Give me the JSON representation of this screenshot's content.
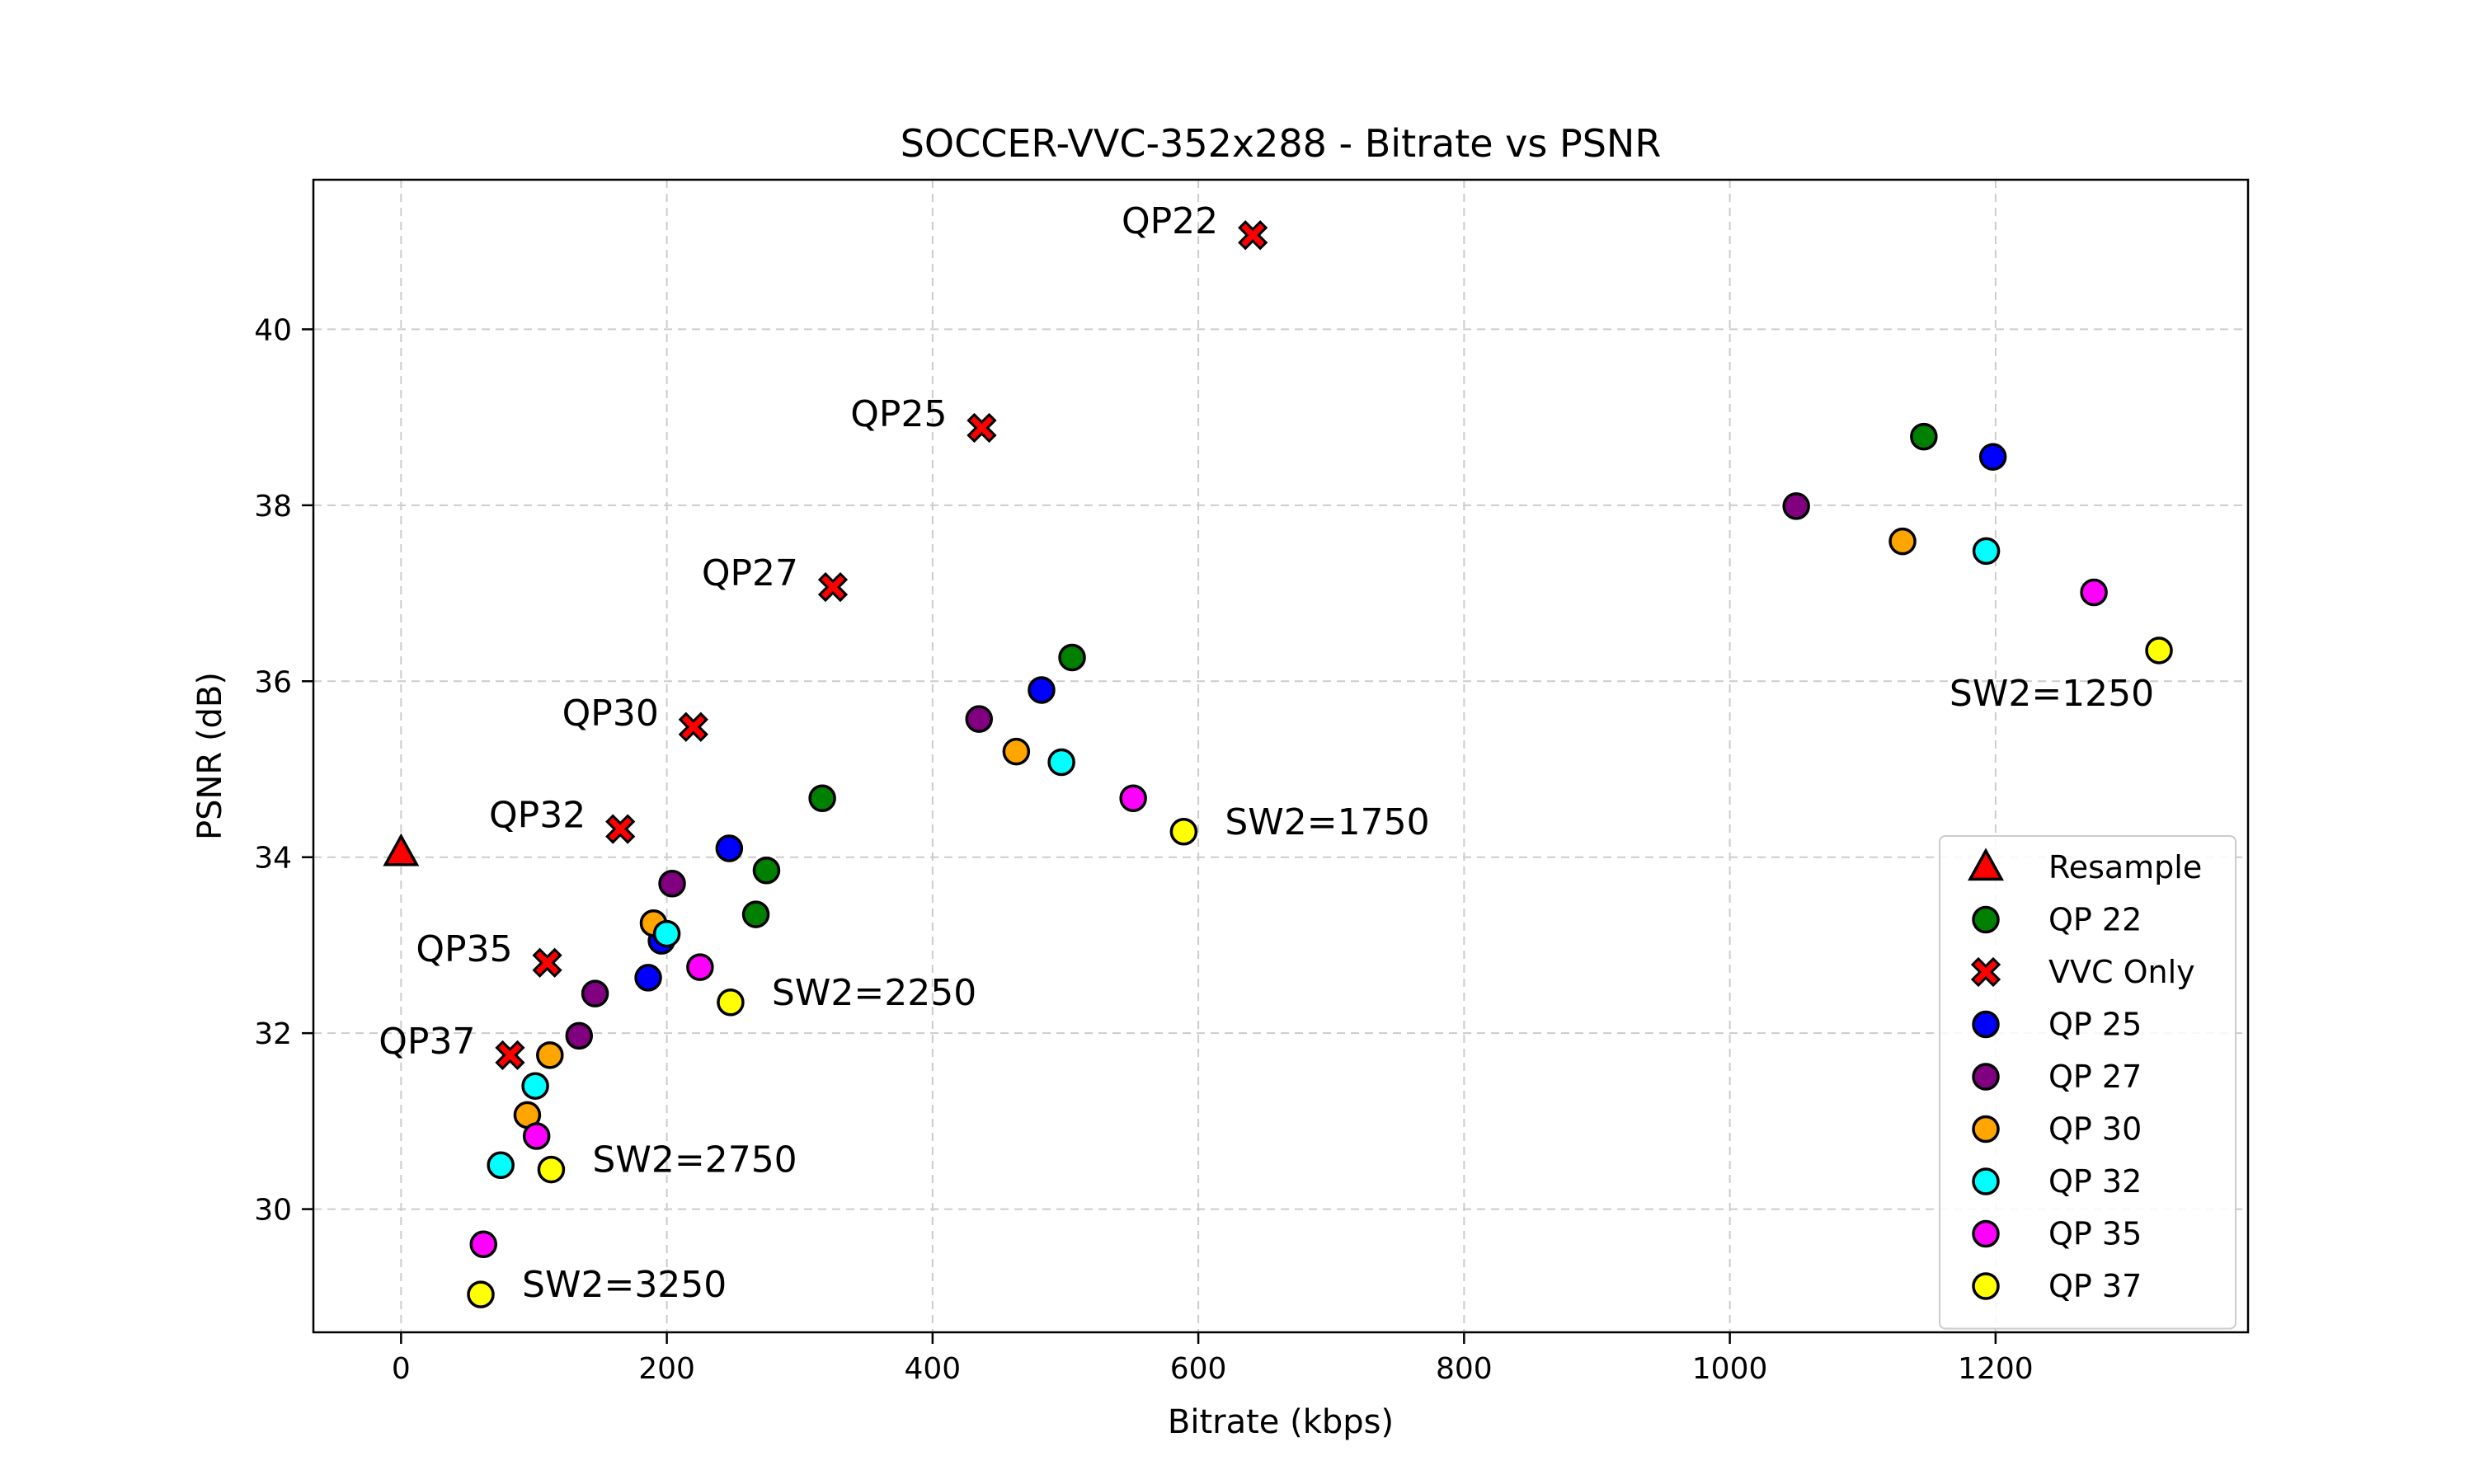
{
  "chart_data": {
    "type": "scatter",
    "title": "SOCCER-VVC-352x288 - Bitrate vs PSNR",
    "xlabel": "Bitrate (kbps)",
    "ylabel": "PSNR (dB)",
    "xlim": [
      -66,
      1390
    ],
    "ylim": [
      28.6,
      41.7
    ],
    "xticks": [
      0,
      200,
      400,
      600,
      800,
      1000,
      1200
    ],
    "yticks": [
      30,
      32,
      34,
      36,
      38,
      40
    ],
    "grid": true,
    "legend_position": "lower-right",
    "series": [
      {
        "name": "Resample",
        "marker": "triangle",
        "color": "#ff0000",
        "points": [
          {
            "x": 0,
            "y": 34.05
          }
        ]
      },
      {
        "name": "QP 22",
        "marker": "circle",
        "color": "#008000",
        "points": [
          {
            "x": 1146,
            "y": 38.78
          },
          {
            "x": 505,
            "y": 36.27
          },
          {
            "x": 317,
            "y": 34.67
          },
          {
            "x": 275,
            "y": 33.85
          },
          {
            "x": 267,
            "y": 33.35
          }
        ]
      },
      {
        "name": "VVC Only",
        "marker": "x",
        "color": "#ff0000",
        "points": [
          {
            "x": 641,
            "y": 41.07
          },
          {
            "x": 437,
            "y": 38.88
          },
          {
            "x": 325,
            "y": 37.07
          },
          {
            "x": 220,
            "y": 35.48
          },
          {
            "x": 165,
            "y": 34.32
          },
          {
            "x": 110,
            "y": 32.8
          },
          {
            "x": 82,
            "y": 31.75
          }
        ]
      },
      {
        "name": "QP 25",
        "marker": "circle",
        "color": "#0000ff",
        "points": [
          {
            "x": 1198,
            "y": 38.55
          },
          {
            "x": 482,
            "y": 35.9
          },
          {
            "x": 247,
            "y": 34.1
          },
          {
            "x": 196,
            "y": 33.05
          },
          {
            "x": 186,
            "y": 32.63
          }
        ]
      },
      {
        "name": "QP 27",
        "marker": "circle",
        "color": "#800080",
        "points": [
          {
            "x": 1050,
            "y": 37.99
          },
          {
            "x": 435,
            "y": 35.57
          },
          {
            "x": 204,
            "y": 33.7
          },
          {
            "x": 146,
            "y": 32.45
          },
          {
            "x": 134,
            "y": 31.97
          }
        ]
      },
      {
        "name": "QP 30",
        "marker": "circle",
        "color": "#ffa500",
        "points": [
          {
            "x": 1130,
            "y": 37.59
          },
          {
            "x": 463,
            "y": 35.2
          },
          {
            "x": 190,
            "y": 33.25
          },
          {
            "x": 112,
            "y": 31.75
          },
          {
            "x": 95,
            "y": 31.07
          }
        ]
      },
      {
        "name": "QP 32",
        "marker": "circle",
        "color": "#00ffff",
        "points": [
          {
            "x": 1193,
            "y": 37.48
          },
          {
            "x": 497,
            "y": 35.08
          },
          {
            "x": 200,
            "y": 33.13
          },
          {
            "x": 101,
            "y": 31.4
          },
          {
            "x": 75,
            "y": 30.5
          }
        ]
      },
      {
        "name": "QP 35",
        "marker": "circle",
        "color": "#ff00ff",
        "points": [
          {
            "x": 1274,
            "y": 37.01
          },
          {
            "x": 551,
            "y": 34.67
          },
          {
            "x": 225,
            "y": 32.75
          },
          {
            "x": 102,
            "y": 30.83
          },
          {
            "x": 62,
            "y": 29.6
          }
        ]
      },
      {
        "name": "QP 37",
        "marker": "circle",
        "color": "#ffff00",
        "points": [
          {
            "x": 1323,
            "y": 36.35
          },
          {
            "x": 589,
            "y": 34.29
          },
          {
            "x": 248,
            "y": 32.35
          },
          {
            "x": 113,
            "y": 30.45
          },
          {
            "x": 60,
            "y": 29.03
          }
        ]
      }
    ],
    "annotations": [
      {
        "text": "QP22",
        "x": 641,
        "y": 41.07,
        "side": "left"
      },
      {
        "text": "QP25",
        "x": 437,
        "y": 38.88,
        "side": "left"
      },
      {
        "text": "QP27",
        "x": 325,
        "y": 37.07,
        "side": "left"
      },
      {
        "text": "QP30",
        "x": 220,
        "y": 35.48,
        "side": "left"
      },
      {
        "text": "QP32",
        "x": 165,
        "y": 34.32,
        "side": "left"
      },
      {
        "text": "QP35",
        "x": 110,
        "y": 32.8,
        "side": "left"
      },
      {
        "text": "QP37",
        "x": 82,
        "y": 31.75,
        "side": "left"
      },
      {
        "text": "SW2=1250",
        "x": 1323,
        "y": 36.35,
        "side": "below"
      },
      {
        "text": "SW2=1750",
        "x": 589,
        "y": 34.29,
        "side": "right"
      },
      {
        "text": "SW2=2250",
        "x": 248,
        "y": 32.35,
        "side": "right"
      },
      {
        "text": "SW2=2750",
        "x": 113,
        "y": 30.45,
        "side": "right"
      },
      {
        "text": "SW2=3250",
        "x": 60,
        "y": 29.03,
        "side": "right"
      }
    ]
  }
}
